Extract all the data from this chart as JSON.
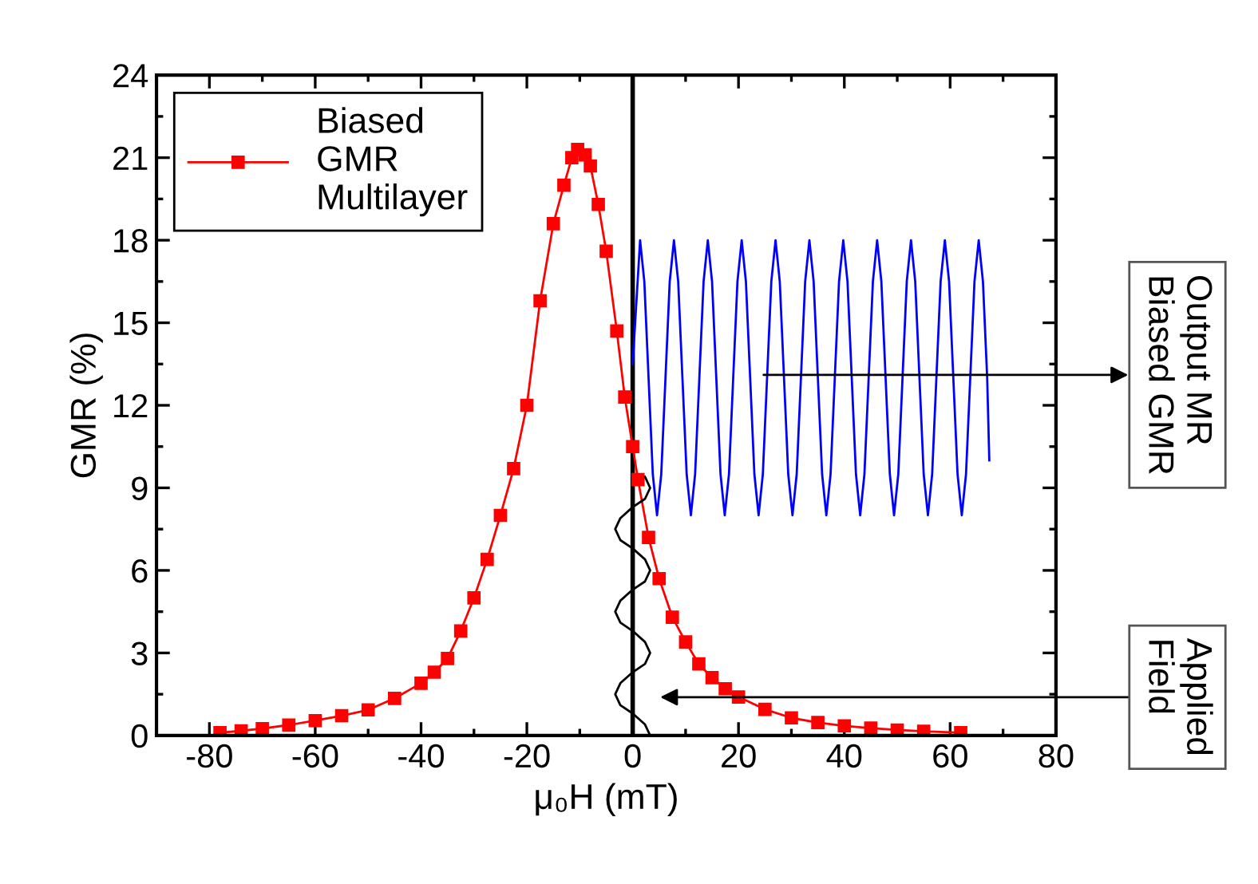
{
  "chart_data": {
    "type": "line",
    "xlabel": "μ₀H (mT)",
    "ylabel": "GMR (%)",
    "xlim": [
      -90,
      80
    ],
    "ylim": [
      0,
      24
    ],
    "xticks": [
      -80,
      {
        "value": -70,
        "label": null
      },
      -60,
      {
        "value": -50,
        "label": null
      },
      -40,
      {
        "value": -30,
        "label": null
      },
      -20,
      {
        "value": -10,
        "label": null
      },
      0,
      {
        "value": 10,
        "label": null
      },
      20,
      {
        "value": 30,
        "label": null
      },
      40,
      {
        "value": 50,
        "label": null
      },
      60,
      {
        "value": 70,
        "label": null
      },
      80
    ],
    "yticks": [
      0,
      {
        "value": 1.5,
        "label": null
      },
      3,
      {
        "value": 4.5,
        "label": null
      },
      6,
      {
        "value": 7.5,
        "label": null
      },
      9,
      {
        "value": 10.5,
        "label": null
      },
      12,
      {
        "value": 13.5,
        "label": null
      },
      15,
      {
        "value": 16.5,
        "label": null
      },
      18,
      {
        "value": 19.5,
        "label": null
      },
      21,
      {
        "value": 22.5,
        "label": null
      },
      24
    ],
    "grid": false,
    "legend": "top left",
    "ref_lines": [
      {
        "axis": "x",
        "value": 0,
        "color": "#000000"
      }
    ],
    "series": [
      {
        "name": "Biased\nGMR\nMultilayer",
        "color": "#ff0000",
        "marker": "square",
        "x": [
          -78,
          -74,
          -70,
          -65,
          -60,
          -55,
          -50,
          -45,
          -40,
          -37.5,
          -35,
          -32.5,
          -30,
          -27.5,
          -25,
          -22.5,
          -20,
          -17.5,
          -15,
          -13,
          -11.5,
          -10.4,
          -9,
          -8,
          -6.5,
          -5,
          -3,
          -1.5,
          0,
          1,
          3,
          5,
          7.5,
          10,
          12.5,
          15,
          17.5,
          20,
          25,
          30,
          35,
          40,
          45,
          50,
          55,
          62
        ],
        "values": [
          0.1,
          0.17,
          0.25,
          0.38,
          0.54,
          0.72,
          0.93,
          1.35,
          1.9,
          2.3,
          2.8,
          3.8,
          5.0,
          6.4,
          8.0,
          9.7,
          12.0,
          15.8,
          18.6,
          20.0,
          21.0,
          21.3,
          21.1,
          20.7,
          19.3,
          17.6,
          14.7,
          12.3,
          10.5,
          9.3,
          7.2,
          5.7,
          4.3,
          3.4,
          2.6,
          2.1,
          1.7,
          1.4,
          0.95,
          0.64,
          0.47,
          0.35,
          0.27,
          0.2,
          0.15,
          0.1
        ]
      },
      {
        "color": "#0000ff",
        "marker": "none",
        "x": [
          0,
          1.4,
          2.2,
          3.0,
          3.8,
          4.6,
          5.4,
          6.2,
          7.0,
          7.8,
          8.6,
          9.4,
          10.2,
          11.0,
          11.8,
          12.6,
          13.4,
          14.2,
          15.0,
          15.8,
          16.6,
          17.4,
          18.2,
          19.0,
          19.8,
          20.6,
          21.4,
          22.2,
          23.0,
          23.8,
          24.6,
          25.4,
          26.2,
          27.0,
          27.8,
          28.6,
          29.4,
          30.2,
          31.0,
          31.8,
          32.6,
          33.4,
          34.2,
          35.0,
          35.8,
          36.6,
          37.4,
          38.2,
          39.0,
          39.8,
          40.6,
          41.4,
          42.2,
          43.0,
          43.8,
          44.6,
          45.4,
          46.2,
          47.0,
          47.8,
          48.6,
          49.4,
          50.2,
          51.0,
          51.8,
          52.6,
          53.4,
          54.2,
          55.0,
          55.8,
          56.6,
          57.4,
          58.2,
          59.0,
          59.8,
          60.6,
          61.4,
          62.2,
          63.0,
          63.8,
          64.6,
          65.4,
          66.2,
          67.0,
          67.4
        ],
        "values": [
          13.5,
          18,
          16.5,
          13,
          9.5,
          8,
          9.5,
          13,
          16.5,
          18,
          16.5,
          13,
          9.5,
          8,
          9.5,
          13,
          16.5,
          18,
          16.5,
          13,
          9.5,
          8,
          9.5,
          13,
          16.5,
          18,
          16.5,
          13,
          9.5,
          8,
          9.5,
          13,
          16.5,
          18,
          16.5,
          13,
          9.5,
          8,
          9.5,
          13,
          16.5,
          18,
          16.5,
          13,
          9.5,
          8,
          9.5,
          13,
          16.5,
          18,
          16.5,
          13,
          9.5,
          8,
          9.5,
          13,
          16.5,
          18,
          16.5,
          13,
          9.5,
          8,
          9.5,
          13,
          16.5,
          18,
          16.5,
          13,
          9.5,
          8,
          9.5,
          13,
          16.5,
          18,
          16.5,
          13,
          9.5,
          8,
          9.5,
          13,
          16.5,
          18,
          16.5,
          13,
          10
        ]
      },
      {
        "color": "#000000",
        "marker": "none",
        "x": [
          2.33,
          3.3,
          2.33,
          0,
          -2.33,
          -3.3,
          -2.33,
          0,
          2.33,
          3.3,
          2.33,
          0,
          -2.33,
          -3.3,
          -2.33,
          0,
          2.33,
          3.3,
          2.33,
          0,
          -2.33,
          -3.3,
          -2.33,
          0,
          2.33,
          3.3
        ],
        "values": [
          9.4,
          9.0,
          8.6,
          8.3,
          7.9,
          7.5,
          7.1,
          6.8,
          6.4,
          6.0,
          5.6,
          5.3,
          4.9,
          4.5,
          4.1,
          3.8,
          3.4,
          3.0,
          2.6,
          2.3,
          1.9,
          1.5,
          1.1,
          0.8,
          0.4,
          0
        ]
      }
    ],
    "annotations": [
      "Output MR\nBiased GMR",
      "Applied\nField"
    ]
  }
}
